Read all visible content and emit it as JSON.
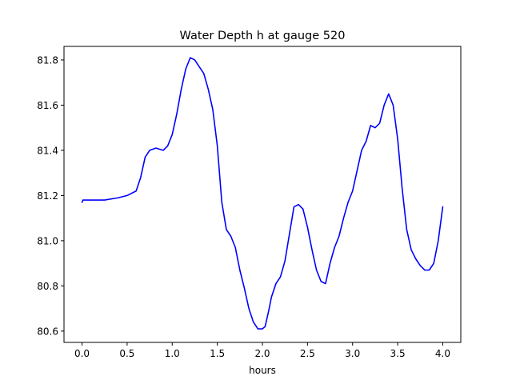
{
  "chart_data": {
    "type": "line",
    "title": "Water Depth h at gauge 520",
    "xlabel": "hours",
    "ylabel": "",
    "xlim": [
      -0.2,
      4.2
    ],
    "ylim": [
      80.55,
      81.86
    ],
    "grid": false,
    "x_ticks": [
      0.0,
      0.5,
      1.0,
      1.5,
      2.0,
      2.5,
      3.0,
      3.5,
      4.0
    ],
    "x_tick_labels": [
      "0.0",
      "0.5",
      "1.0",
      "1.5",
      "2.0",
      "2.5",
      "3.0",
      "3.5",
      "4.0"
    ],
    "y_ticks": [
      80.6,
      80.8,
      81.0,
      81.2,
      81.4,
      81.6,
      81.8
    ],
    "y_tick_labels": [
      "80.6",
      "80.8",
      "81.0",
      "81.2",
      "81.4",
      "81.6",
      "81.8"
    ],
    "series": [
      {
        "color": "#0000ff",
        "x": [
          0.0,
          0.01,
          0.1,
          0.25,
          0.4,
          0.5,
          0.6,
          0.65,
          0.7,
          0.75,
          0.82,
          0.9,
          0.95,
          1.0,
          1.05,
          1.1,
          1.15,
          1.2,
          1.25,
          1.3,
          1.35,
          1.4,
          1.45,
          1.5,
          1.55,
          1.6,
          1.65,
          1.7,
          1.75,
          1.8,
          1.85,
          1.9,
          1.95,
          2.0,
          2.03,
          2.07,
          2.1,
          2.15,
          2.2,
          2.25,
          2.3,
          2.35,
          2.4,
          2.45,
          2.5,
          2.55,
          2.6,
          2.65,
          2.7,
          2.75,
          2.8,
          2.85,
          2.9,
          2.95,
          3.0,
          3.05,
          3.1,
          3.15,
          3.2,
          3.25,
          3.3,
          3.35,
          3.4,
          3.45,
          3.5,
          3.55,
          3.6,
          3.65,
          3.7,
          3.75,
          3.8,
          3.85,
          3.9,
          3.95,
          4.0
        ],
        "y": [
          81.17,
          81.18,
          81.18,
          81.18,
          81.19,
          81.2,
          81.22,
          81.28,
          81.37,
          81.4,
          81.41,
          81.4,
          81.42,
          81.47,
          81.56,
          81.67,
          81.76,
          81.81,
          81.8,
          81.77,
          81.74,
          81.67,
          81.58,
          81.42,
          81.17,
          81.05,
          81.02,
          80.97,
          80.87,
          80.79,
          80.7,
          80.64,
          80.61,
          80.61,
          80.62,
          80.69,
          80.75,
          80.81,
          80.84,
          80.91,
          81.03,
          81.15,
          81.16,
          81.14,
          81.06,
          80.96,
          80.87,
          80.82,
          80.81,
          80.9,
          80.97,
          81.02,
          81.1,
          81.17,
          81.22,
          81.31,
          81.4,
          81.44,
          81.51,
          81.5,
          81.52,
          81.6,
          81.65,
          81.6,
          81.45,
          81.23,
          81.05,
          80.96,
          80.92,
          80.89,
          80.87,
          80.87,
          80.9,
          81.0,
          81.15
        ]
      }
    ]
  }
}
